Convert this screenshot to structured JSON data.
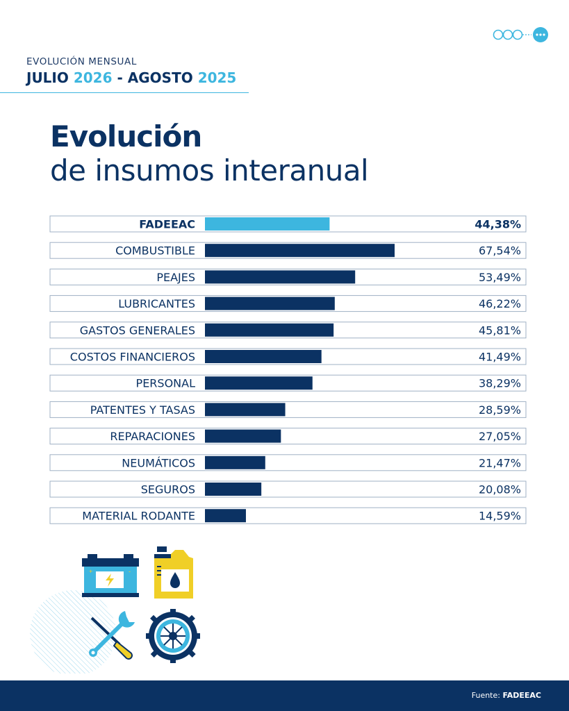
{
  "header": {
    "subtitle": "EVOLUCIÓN MENSUAL",
    "month_1": "JULIO",
    "year_1": "2026",
    "separator": "-",
    "month_2": "AGOSTO",
    "year_2": "2025"
  },
  "title": {
    "line1": "Evolución",
    "line2": "de insumos interanual"
  },
  "footer": {
    "source_label": "Fuente:",
    "source_name": "FADEEAC"
  },
  "icons": [
    "brand-dots-icon",
    "car-battery-icon",
    "oil-bottle-icon",
    "wrench-screwdriver-icon",
    "tire-icon"
  ],
  "colors": {
    "navy": "#0b3263",
    "accent": "#3db6df",
    "row_border": "#9fb0c4"
  },
  "chart_data": {
    "type": "bar",
    "orientation": "horizontal",
    "categories": [
      "FADEEAC",
      "COMBUSTIBLE",
      "PEAJES",
      "LUBRICANTES",
      "GASTOS GENERALES",
      "COSTOS FINANCIEROS",
      "PERSONAL",
      "PATENTES Y TASAS",
      "REPARACIONES",
      "NEUMÁTICOS",
      "SEGUROS",
      "MATERIAL RODANTE"
    ],
    "values": [
      44.38,
      67.54,
      53.49,
      46.22,
      45.81,
      41.49,
      38.29,
      28.59,
      27.05,
      21.47,
      20.08,
      14.59
    ],
    "value_labels": [
      "44,38%",
      "67,54%",
      "53,49%",
      "46,22%",
      "45,81%",
      "41,49%",
      "38,29%",
      "28,59%",
      "27,05%",
      "21,47%",
      "20,08%",
      "14,59%"
    ],
    "highlight": "FADEEAC",
    "bar_color": "#0b3263",
    "highlight_color": "#3db6df",
    "xlim": [
      0,
      100
    ],
    "grid": false,
    "legend": "none"
  }
}
